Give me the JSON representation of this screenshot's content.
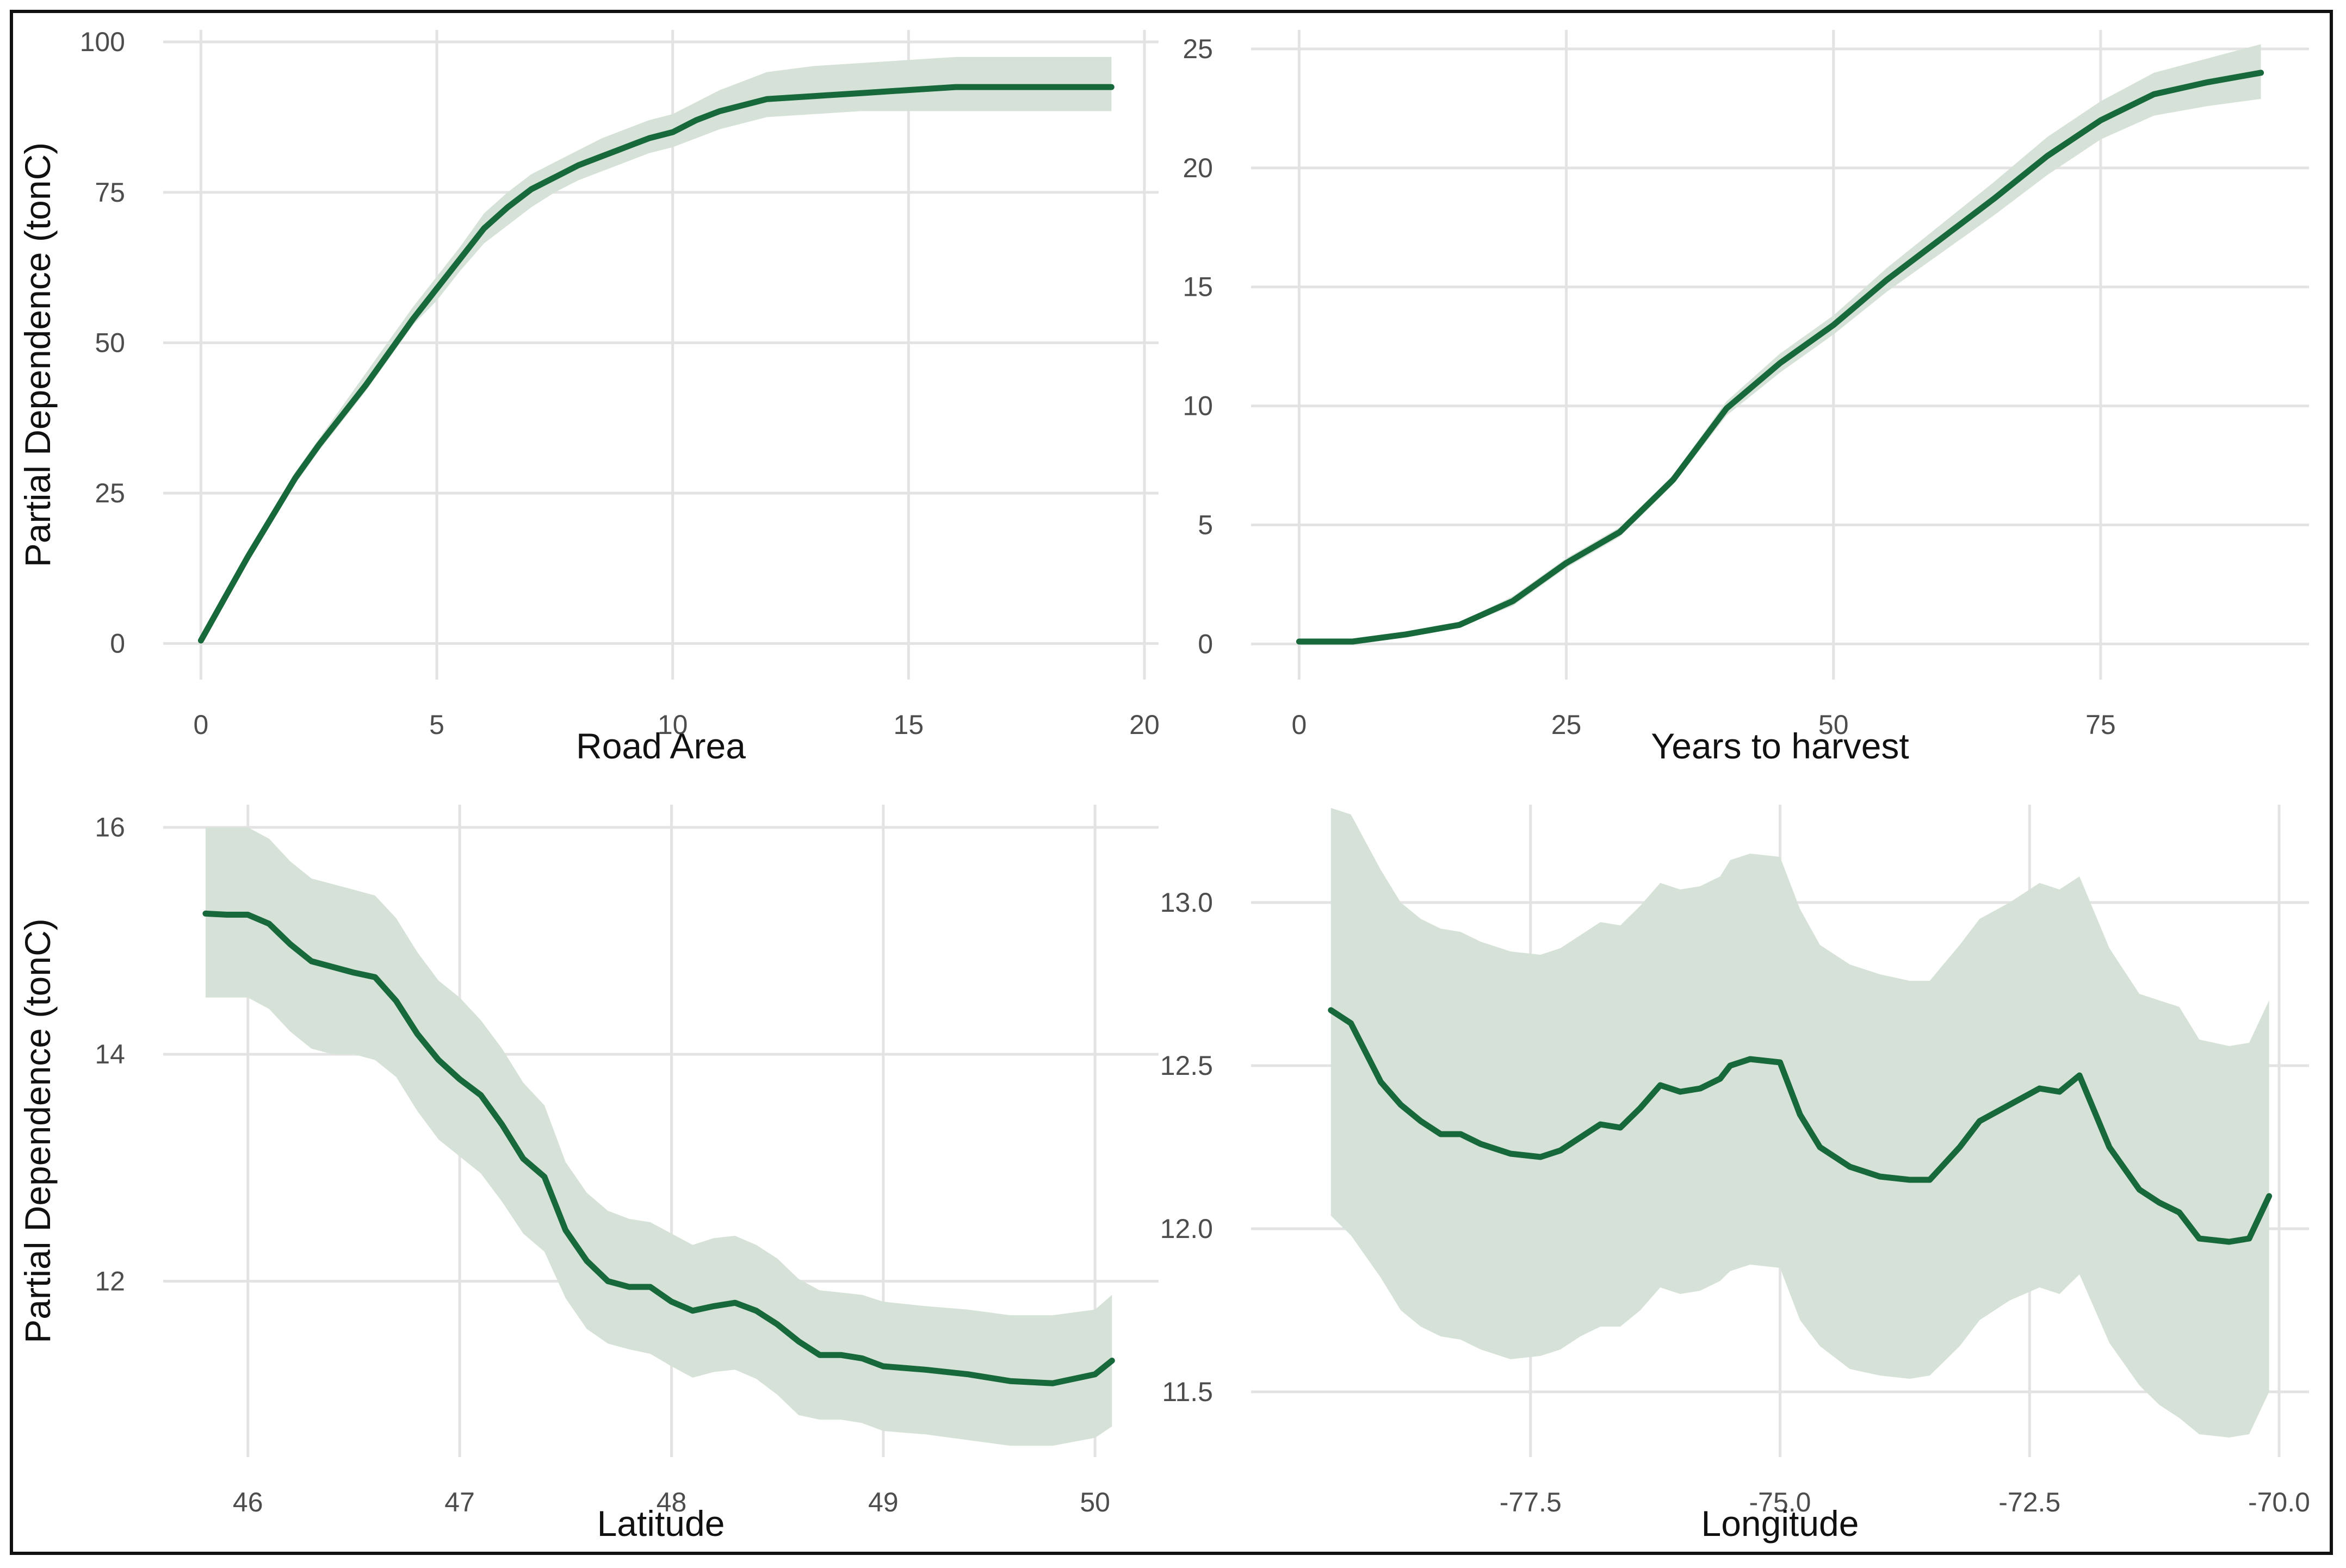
{
  "colors": {
    "line": "#17683a",
    "band": "#d6e2d8",
    "grid": "#e3e3e3"
  },
  "chart_data": [
    {
      "type": "line",
      "id": "road-area",
      "xlabel": "Road Area",
      "ylabel": "Partial Dependence (tonC)",
      "xlim": [
        -0.8,
        20.3
      ],
      "ylim": [
        -6,
        102
      ],
      "xticks": [
        0,
        5,
        10,
        15,
        20
      ],
      "yticks": [
        0,
        25,
        50,
        75,
        100
      ],
      "xtick_labels": [
        "0",
        "5",
        "10",
        "15",
        "20"
      ],
      "ytick_labels": [
        "0",
        "25",
        "50",
        "75",
        "100"
      ],
      "x": [
        0,
        0.5,
        1.0,
        1.5,
        2.0,
        2.5,
        3.0,
        3.5,
        4.0,
        4.5,
        5.0,
        5.5,
        6.0,
        6.5,
        7.0,
        7.5,
        8.0,
        8.5,
        9.0,
        9.5,
        10.0,
        10.5,
        11.0,
        11.5,
        12.0,
        13.0,
        14.0,
        15.0,
        16.0,
        17.0,
        18.0,
        19.3
      ],
      "y": [
        0.5,
        7.5,
        14.5,
        21,
        27.5,
        33,
        38,
        43,
        48.5,
        54,
        59,
        64,
        69,
        72.5,
        75.5,
        77.5,
        79.5,
        81,
        82.5,
        84,
        85,
        87,
        88.5,
        89.5,
        90.5,
        91,
        91.5,
        92,
        92.5,
        92.5,
        92.5,
        92.5
      ],
      "lower": [
        0,
        7,
        13.5,
        20,
        26.5,
        32,
        37,
        42,
        47.5,
        53,
        57,
        62,
        66.5,
        69.5,
        72.5,
        75,
        77,
        78.5,
        80,
        81.5,
        82.5,
        84,
        85.5,
        86.5,
        87.5,
        88,
        88.5,
        88.5,
        88.5,
        88.5,
        88.5,
        88.5
      ],
      "upper": [
        1,
        8,
        15.5,
        22,
        28.5,
        34,
        39.5,
        45,
        50.5,
        56,
        61,
        66,
        71.5,
        75,
        78,
        80,
        82,
        84,
        85.5,
        87,
        88,
        90,
        92,
        93.5,
        95,
        96,
        96.5,
        97,
        97.5,
        97.5,
        97.5,
        97.5
      ]
    },
    {
      "type": "line",
      "id": "years-to-harvest",
      "xlabel": "Years to harvest",
      "ylabel": "",
      "xlim": [
        -4.5,
        94.5
      ],
      "ylim": [
        -1.5,
        25.8
      ],
      "xticks": [
        0,
        25,
        50,
        75
      ],
      "yticks": [
        0,
        5,
        10,
        15,
        20,
        25
      ],
      "xtick_labels": [
        "0",
        "25",
        "50",
        "75"
      ],
      "ytick_labels": [
        "0",
        "5",
        "10",
        "15",
        "20",
        "25"
      ],
      "x": [
        0,
        5,
        10,
        15,
        20,
        25,
        30,
        35,
        40,
        45,
        50,
        55,
        60,
        65,
        70,
        75,
        80,
        85,
        90
      ],
      "y": [
        0.1,
        0.1,
        0.4,
        0.8,
        1.8,
        3.4,
        4.7,
        6.9,
        9.9,
        11.8,
        13.4,
        15.3,
        17.0,
        18.7,
        20.5,
        22.0,
        23.1,
        23.6,
        24.0
      ],
      "lower": [
        0.05,
        0.05,
        0.3,
        0.7,
        1.6,
        3.2,
        4.5,
        6.7,
        9.6,
        11.4,
        13.0,
        14.8,
        16.4,
        18.0,
        19.7,
        21.2,
        22.2,
        22.6,
        22.9
      ],
      "upper": [
        0.2,
        0.2,
        0.5,
        0.9,
        2.0,
        3.6,
        4.9,
        7.1,
        10.2,
        12.2,
        13.8,
        15.8,
        17.6,
        19.4,
        21.3,
        22.8,
        24.0,
        24.6,
        25.2
      ]
    },
    {
      "type": "line",
      "id": "latitude",
      "xlabel": "Latitude",
      "ylabel": "Partial Dependence (tonC)",
      "xlim": [
        45.6,
        50.3
      ],
      "ylim": [
        10.45,
        16.2
      ],
      "xticks": [
        46,
        47,
        48,
        49,
        50
      ],
      "yticks": [
        12,
        14,
        16
      ],
      "xtick_labels": [
        "46",
        "47",
        "48",
        "49",
        "50"
      ],
      "ytick_labels": [
        "12",
        "14",
        "16"
      ],
      "x": [
        45.8,
        45.9,
        46.0,
        46.1,
        46.2,
        46.3,
        46.4,
        46.5,
        46.6,
        46.7,
        46.8,
        46.9,
        47.0,
        47.1,
        47.2,
        47.3,
        47.4,
        47.5,
        47.6,
        47.7,
        47.8,
        47.9,
        48.0,
        48.1,
        48.2,
        48.3,
        48.4,
        48.5,
        48.6,
        48.7,
        48.8,
        48.9,
        49.0,
        49.2,
        49.4,
        49.6,
        49.8,
        50.0,
        50.08
      ],
      "y": [
        15.24,
        15.23,
        15.23,
        15.15,
        14.97,
        14.82,
        14.77,
        14.72,
        14.68,
        14.47,
        14.18,
        13.95,
        13.78,
        13.64,
        13.38,
        13.08,
        12.92,
        12.45,
        12.18,
        12.0,
        11.95,
        11.95,
        11.82,
        11.74,
        11.78,
        11.81,
        11.74,
        11.62,
        11.47,
        11.35,
        11.35,
        11.32,
        11.25,
        11.22,
        11.18,
        11.12,
        11.1,
        11.18,
        11.3
      ],
      "lower": [
        14.5,
        14.5,
        14.5,
        14.4,
        14.2,
        14.05,
        14.0,
        14.0,
        13.95,
        13.8,
        13.5,
        13.25,
        13.1,
        12.95,
        12.7,
        12.42,
        12.26,
        11.85,
        11.58,
        11.45,
        11.4,
        11.36,
        11.25,
        11.15,
        11.2,
        11.22,
        11.14,
        11.0,
        10.82,
        10.78,
        10.78,
        10.75,
        10.68,
        10.65,
        10.6,
        10.55,
        10.55,
        10.62,
        10.72
      ],
      "upper": [
        16.0,
        16.0,
        16.0,
        15.9,
        15.7,
        15.55,
        15.5,
        15.45,
        15.4,
        15.2,
        14.9,
        14.65,
        14.5,
        14.3,
        14.05,
        13.75,
        13.55,
        13.05,
        12.78,
        12.62,
        12.55,
        12.52,
        12.42,
        12.32,
        12.38,
        12.4,
        12.32,
        12.2,
        12.02,
        11.92,
        11.9,
        11.88,
        11.82,
        11.78,
        11.75,
        11.7,
        11.7,
        11.75,
        11.88
      ]
    },
    {
      "type": "line",
      "id": "longitude",
      "xlabel": "Longitude",
      "ylabel": "",
      "xlim": [
        -80.3,
        -69.7
      ],
      "ylim": [
        11.3,
        13.3
      ],
      "xticks": [
        -77.5,
        -75.0,
        -72.5,
        -70.0
      ],
      "yticks": [
        11.5,
        12.0,
        12.5,
        13.0
      ],
      "xtick_labels": [
        "-77.5",
        "-75.0",
        "-72.5",
        "-70.0"
      ],
      "ytick_labels": [
        "11.5",
        "12.0",
        "12.5",
        "13.0"
      ],
      "x": [
        -79.5,
        -79.3,
        -79.0,
        -78.8,
        -78.6,
        -78.4,
        -78.2,
        -78.0,
        -77.7,
        -77.4,
        -77.2,
        -77.0,
        -76.8,
        -76.6,
        -76.4,
        -76.2,
        -76.0,
        -75.8,
        -75.6,
        -75.5,
        -75.3,
        -75.0,
        -74.8,
        -74.6,
        -74.3,
        -74.0,
        -73.7,
        -73.5,
        -73.2,
        -73.0,
        -72.7,
        -72.4,
        -72.2,
        -72.0,
        -71.7,
        -71.4,
        -71.2,
        -71.0,
        -70.8,
        -70.5,
        -70.3,
        -70.1
      ],
      "y": [
        12.67,
        12.63,
        12.45,
        12.38,
        12.33,
        12.29,
        12.29,
        12.26,
        12.23,
        12.22,
        12.24,
        12.28,
        12.32,
        12.31,
        12.37,
        12.44,
        12.42,
        12.43,
        12.46,
        12.5,
        12.52,
        12.51,
        12.35,
        12.25,
        12.19,
        12.16,
        12.15,
        12.15,
        12.25,
        12.33,
        12.38,
        12.43,
        12.42,
        12.47,
        12.25,
        12.12,
        12.08,
        12.05,
        11.97,
        11.96,
        11.97,
        12.1
      ],
      "lower": [
        12.04,
        11.98,
        11.85,
        11.75,
        11.7,
        11.67,
        11.66,
        11.63,
        11.6,
        11.61,
        11.63,
        11.67,
        11.7,
        11.7,
        11.75,
        11.82,
        11.8,
        11.81,
        11.84,
        11.87,
        11.89,
        11.88,
        11.72,
        11.64,
        11.57,
        11.55,
        11.54,
        11.55,
        11.64,
        11.72,
        11.78,
        11.82,
        11.8,
        11.86,
        11.65,
        11.52,
        11.46,
        11.42,
        11.37,
        11.36,
        11.37,
        11.5
      ],
      "upper": [
        13.29,
        13.27,
        13.1,
        13.0,
        12.95,
        12.92,
        12.91,
        12.88,
        12.85,
        12.84,
        12.86,
        12.9,
        12.94,
        12.93,
        12.99,
        13.06,
        13.04,
        13.05,
        13.08,
        13.13,
        13.15,
        13.14,
        12.98,
        12.87,
        12.81,
        12.78,
        12.76,
        12.76,
        12.87,
        12.95,
        13.0,
        13.06,
        13.04,
        13.08,
        12.86,
        12.72,
        12.7,
        12.68,
        12.58,
        12.56,
        12.57,
        12.7
      ]
    }
  ]
}
